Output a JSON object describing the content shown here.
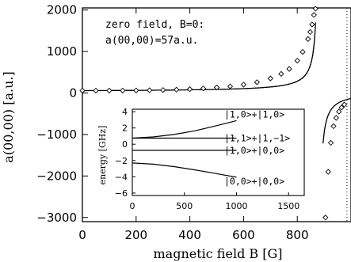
{
  "chart_data": [
    {
      "type": "line",
      "xlabel": "magnetic field B [G]",
      "ylabel": "a(00,00) [a.u.]",
      "xlim": [
        0,
        1000
      ],
      "ylim": [
        -3100,
        2050
      ],
      "xticks": [
        0,
        200,
        400,
        600,
        800
      ],
      "xtick_labels": [
        "0",
        "200",
        "400",
        "600",
        "800"
      ],
      "yticks": [
        2000,
        1000,
        0,
        -1000,
        -2000,
        -3000
      ],
      "ytick_labels": [
        "2000",
        "1000",
        "0",
        "−1000",
        "−2000",
        "−3000"
      ],
      "zero_field_note": [
        "zero field, B=0:",
        "a(00,00)=57a.u."
      ],
      "resonance_B": 880,
      "asymptote_line": {
        "x": 985
      },
      "series": [
        {
          "style": "diamonds",
          "x": [
            0,
            50,
            100,
            150,
            200,
            250,
            300,
            350,
            400,
            450,
            500,
            550,
            600,
            650,
            700,
            740,
            770,
            800,
            820,
            840,
            848,
            855,
            862,
            868,
            905,
            915,
            925,
            935,
            945,
            955,
            965,
            975
          ],
          "y": [
            57,
            57,
            58,
            60,
            62,
            66,
            72,
            80,
            92,
            110,
            132,
            160,
            200,
            260,
            350,
            460,
            580,
            780,
            990,
            1300,
            1470,
            1650,
            1880,
            2030,
            -3000,
            -1900,
            -1200,
            -800,
            -600,
            -450,
            -350,
            -280
          ]
        }
      ],
      "inset": {
        "type": "line",
        "ylabel": "energy [GHz]",
        "xlim": [
          0,
          1650
        ],
        "ylim": [
          -6.3,
          4.3
        ],
        "xticks": [
          0,
          500,
          1000,
          1500
        ],
        "xtick_labels": [
          "0",
          "500",
          "1000",
          "1500"
        ],
        "yticks": [
          4,
          2,
          0,
          -2,
          -4,
          -6
        ],
        "ytick_labels": [
          "4",
          "2",
          "0",
          "−2",
          "−4",
          "−6"
        ],
        "series": [
          {
            "name": "|1,0>+|1,0>",
            "x": [
              0,
              200,
              400,
              600,
              800,
              1000
            ],
            "y": [
              0.75,
              0.9,
              1.2,
              1.65,
              2.25,
              2.9
            ]
          },
          {
            "name": "|1,1>+|1,−1>",
            "x": [
              0,
              1000
            ],
            "y": [
              0.75,
              0.75
            ]
          },
          {
            "name": "|1,0>+|0,0>",
            "x": [
              0,
              1000
            ],
            "y": [
              -0.75,
              -0.75
            ]
          },
          {
            "name": "|0,0>+|0,0>",
            "x": [
              0,
              200,
              400,
              600,
              800,
              1000
            ],
            "y": [
              -2.3,
              -2.45,
              -2.75,
              -3.15,
              -3.6,
              -4.05
            ]
          }
        ]
      }
    }
  ]
}
